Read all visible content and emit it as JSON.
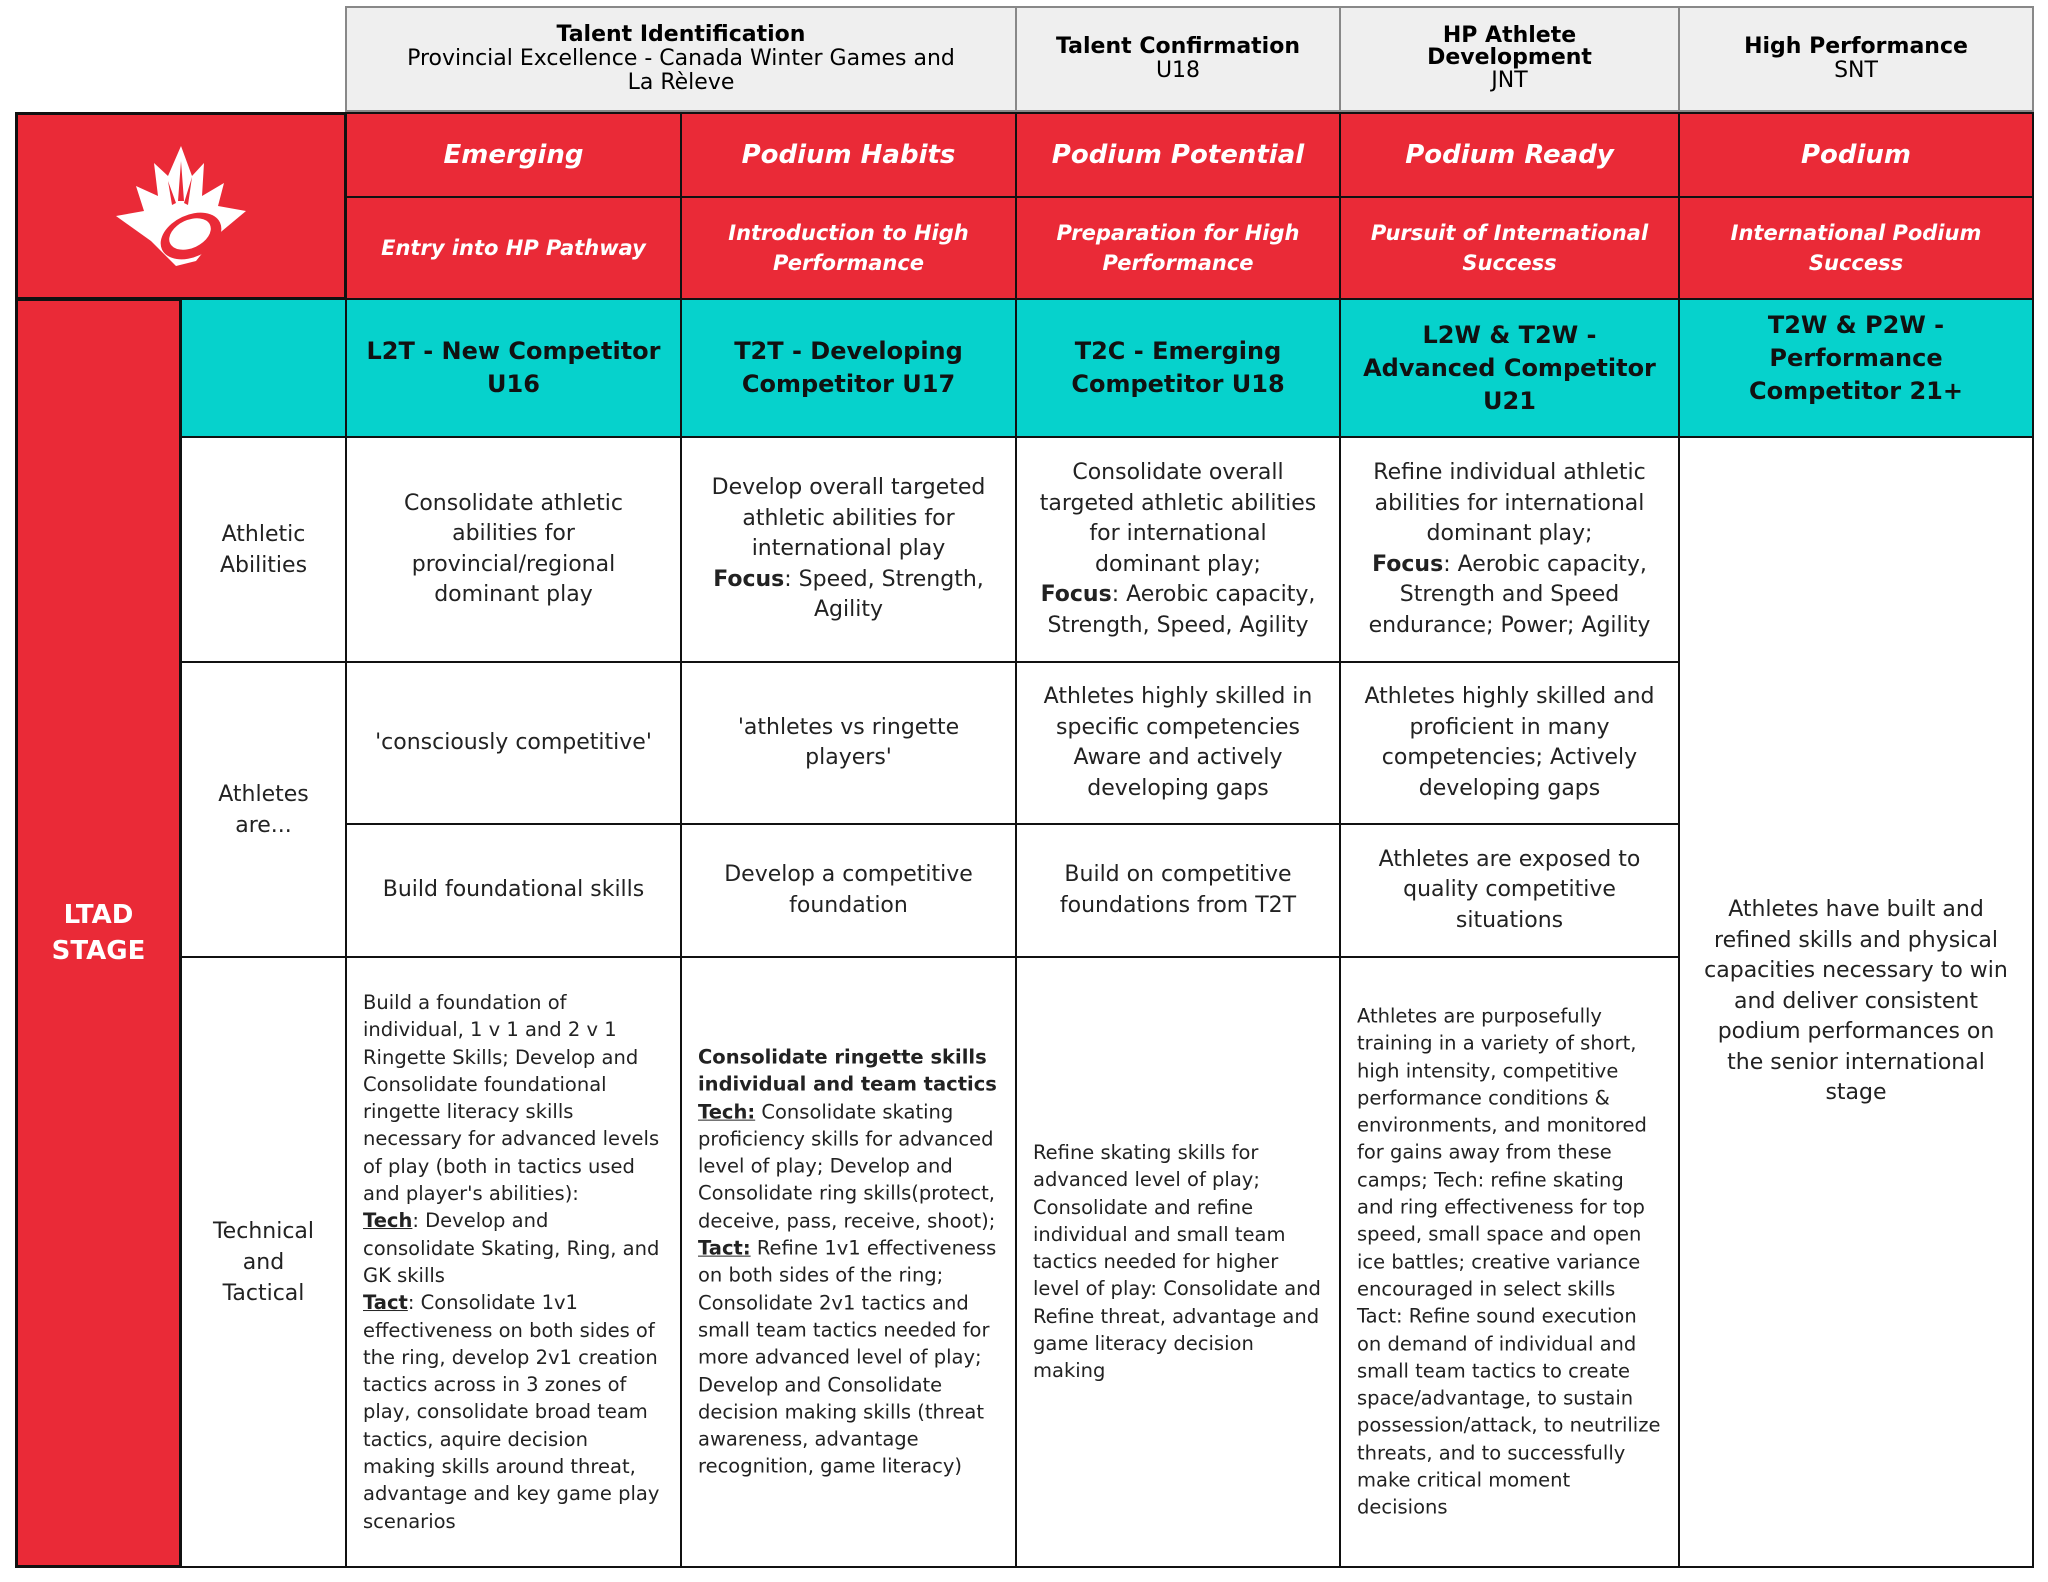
{
  "phases": [
    {
      "title": "Talent Identification",
      "sub": "Provincial Excellence - Canada Winter Games and La Rèleve"
    },
    {
      "title": "Talent Confirmation",
      "sub": "U18"
    },
    {
      "title": "HP Athlete Development",
      "sub": "JNT"
    },
    {
      "title": "High Performance",
      "sub": "SNT"
    }
  ],
  "logo": {
    "name": "maple-leaf-ringette-logo"
  },
  "levels": [
    {
      "name": "Emerging",
      "desc": "Entry into HP Pathway"
    },
    {
      "name": "Podium Habits",
      "desc": "Introduction to High Performance"
    },
    {
      "name": "Podium Potential",
      "desc": "Preparation for High Performance"
    },
    {
      "name": "Podium Ready",
      "desc": "Pursuit of International Success"
    },
    {
      "name": "Podium",
      "desc": "International Podium Success"
    }
  ],
  "ltad_label": "LTAD STAGE",
  "stages": [
    "L2T - New Competitor U16",
    "T2T - Developing Competitor U17",
    "T2C - Emerging Competitor U18",
    "L2W & T2W - Advanced Competitor U21",
    "T2W & P2W - Performance Competitor 21+"
  ],
  "row_labels": {
    "athletic": "Athletic Abilities",
    "athletes": "Athletes are...",
    "technical": "Technical and Tactical"
  },
  "athletic": [
    {
      "text": "Consolidate athletic abilities for provincial/regional dominant play"
    },
    {
      "text": "Develop overall targeted athletic abilities for international play",
      "focus_label": "Focus",
      "focus": ": Speed, Strength, Agility"
    },
    {
      "text": "Consolidate overall targeted athletic abilities for international dominant play;",
      "focus_label": "Focus",
      "focus": ": Aerobic capacity, Strength, Speed, Agility"
    },
    {
      "text": "Refine individual athletic abilities for international dominant play;",
      "focus_label": "Focus",
      "focus": ": Aerobic capacity, Strength and Speed endurance; Power; Agility"
    }
  ],
  "athletes_are": [
    "'consciously competitive'",
    "'athletes vs ringette players'",
    "Athletes highly skilled in specific competencies Aware and actively developing gaps",
    "Athletes highly skilled and proficient in many competencies; Actively developing gaps"
  ],
  "foundation": [
    "Build foundational skills",
    "Develop a competitive foundation",
    "Build on competitive foundations from T2T",
    "Athletes are exposed to quality competitive situations"
  ],
  "podium_summary": "Athletes have built and refined skills and physical capacities necessary to win and deliver consistent podium performances on the senior international stage",
  "technical": {
    "c1": {
      "intro": "Build a foundation of individual, 1 v 1 and 2 v 1 Ringette Skills; Develop and Consolidate foundational ringette literacy skills necessary for advanced levels of play (both in tactics used and player's abilities):",
      "tech_label": "Tech",
      "tech": ": Develop and consolidate Skating, Ring, and GK skills",
      "tact_label": "Tact",
      "tact": ": Consolidate 1v1 effectiveness on both sides of the ring, develop 2v1 creation tactics across in 3 zones of play, consolidate broad team tactics, aquire decision making skills around threat, advantage and key game play scenarios"
    },
    "c2": {
      "heading": "Consolidate ringette skills individual and team tactics",
      "tech_label": "Tech:",
      "tech": " Consolidate skating proficiency skills for advanced level of play; Develop and Consolidate ring skills(protect, deceive, pass, receive, shoot);",
      "tact_label": "Tact:",
      "tact": " Refine 1v1 effectiveness on both sides of the ring; Consolidate 2v1 tactics and small team tactics needed for more advanced level of play; Develop and Consolidate decision making skills (threat awareness, advantage recognition, game literacy)"
    },
    "c3": "Refine skating skills for advanced level of play; Consolidate and refine individual and small team tactics needed for higher level of play: Consolidate and Refine threat, advantage and game literacy decision making",
    "c4": "Athletes are purposefully training in a variety of short, high intensity, competitive performance conditions & environments, and monitored for gains away from these camps; Tech: refine skating and ring effectiveness for top speed, small space and open ice battles; creative variance encouraged in select skills Tact: Refine sound execution on demand of individual and small team tactics to create space/advantage, to sustain possession/attack, to neutrilize threats, and to successfully make critical moment decisions"
  },
  "colors": {
    "red": "#ea2a37",
    "teal": "#06d2cc",
    "header_gray": "#efefef"
  }
}
